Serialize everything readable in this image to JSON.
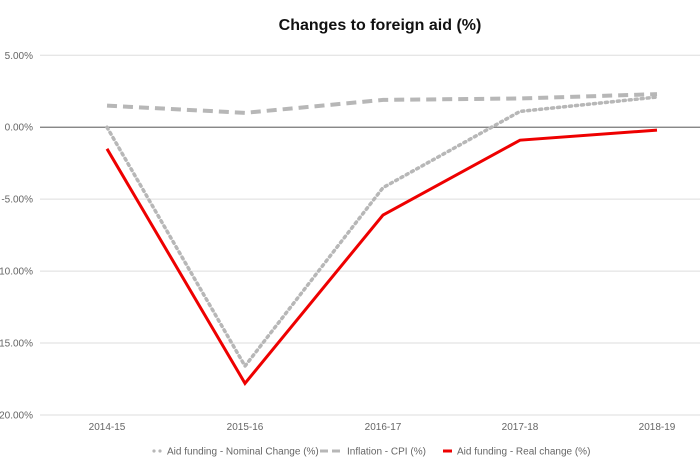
{
  "chart_data": {
    "type": "line",
    "title": "Changes to foreign aid (%)",
    "xlabel": "",
    "ylabel": "",
    "categories": [
      "2014-15",
      "2015-16",
      "2016-17",
      "2017-18",
      "2018-19"
    ],
    "ylim": [
      -20,
      5
    ],
    "yticks": [
      5,
      0,
      -5,
      -10,
      -15,
      -20
    ],
    "ytick_labels": [
      "5.00%",
      "0.00%",
      "-5.00%",
      "-10.00%",
      "-15.00%",
      "-20.00%"
    ],
    "grid": true,
    "legend_position": "bottom",
    "series": [
      {
        "name": "Aid funding - Nominal Change (%)",
        "values": [
          0.0,
          -16.6,
          -4.2,
          1.1,
          2.1
        ],
        "color": "#b7b7b7",
        "style": "dotted"
      },
      {
        "name": "Inflation - CPI (%)",
        "values": [
          1.5,
          1.0,
          1.9,
          2.0,
          2.3
        ],
        "color": "#b7b7b7",
        "style": "dashed"
      },
      {
        "name": "Aid funding - Real change (%)",
        "values": [
          -1.5,
          -17.8,
          -6.1,
          -0.9,
          -0.2
        ],
        "color": "#ee0000",
        "style": "solid"
      }
    ]
  }
}
